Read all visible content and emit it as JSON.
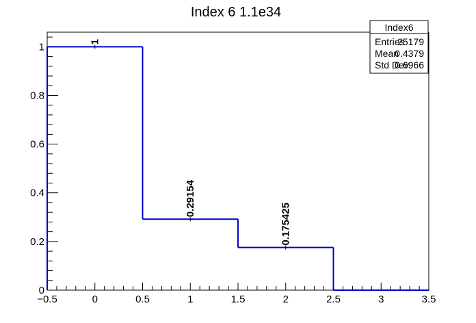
{
  "chart_data": {
    "type": "bar",
    "title": "Index 6 1.1e34",
    "xlabel": "",
    "ylabel": "",
    "xlim": [
      -0.5,
      3.5
    ],
    "ylim": [
      0,
      1.06
    ],
    "xticks": [
      -0.5,
      0,
      0.5,
      1,
      1.5,
      2,
      2.5,
      3,
      3.5
    ],
    "xtick_labels": [
      "−0.5",
      "0",
      "0.5",
      "1",
      "1.5",
      "2",
      "2.5",
      "3",
      "3.5"
    ],
    "yticks": [
      0,
      0.2,
      0.4,
      0.6,
      0.8,
      1
    ],
    "ytick_labels": [
      "0",
      "0.2",
      "0.4",
      "0.6",
      "0.8",
      "1"
    ],
    "bins": [
      {
        "center": 0,
        "low": -0.5,
        "high": 0.5,
        "value": 1,
        "label": "1"
      },
      {
        "center": 1,
        "low": 0.5,
        "high": 1.5,
        "value": 0.29154,
        "label": "0.29154"
      },
      {
        "center": 2,
        "low": 1.5,
        "high": 2.5,
        "value": 0.175425,
        "label": "0.175425"
      },
      {
        "center": 3,
        "low": 2.5,
        "high": 3.5,
        "value": 0,
        "label": ""
      }
    ],
    "line_color": "#0000cc",
    "stats_box": {
      "name": "Index6",
      "rows": [
        {
          "label": "Entries",
          "value": "25179"
        },
        {
          "label": "Mean",
          "value": "0.4379"
        },
        {
          "label": "Std Dev",
          "value": "0.6966"
        }
      ]
    }
  }
}
